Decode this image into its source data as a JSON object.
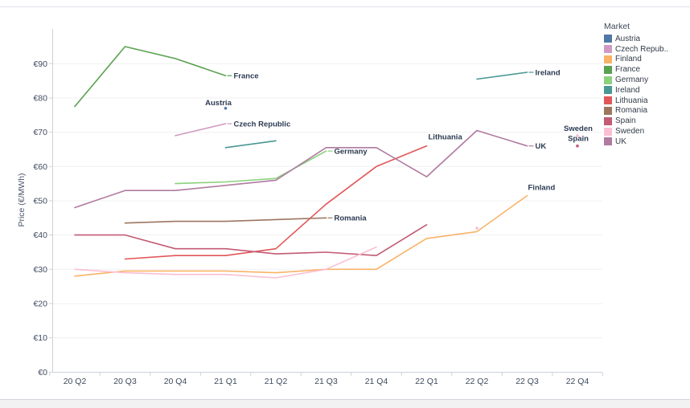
{
  "chart_data": {
    "type": "line",
    "title": "",
    "xlabel": "",
    "ylabel": "Price (€/MWh)",
    "ylim": [
      0,
      97
    ],
    "grid": "horizontal-faint",
    "legend_title": "Market",
    "legend_position": "right",
    "y_tick_values": [
      0,
      10,
      20,
      30,
      40,
      50,
      60,
      70,
      80,
      90
    ],
    "y_ticks": [
      "€0",
      "€10",
      "€20",
      "€30",
      "€40",
      "€50",
      "€60",
      "€70",
      "€80",
      "€90"
    ],
    "categories": [
      "20 Q2",
      "20 Q3",
      "20 Q4",
      "21 Q1",
      "21 Q2",
      "21 Q3",
      "21 Q4",
      "22 Q1",
      "22 Q2",
      "22 Q3",
      "22 Q4"
    ],
    "series": [
      {
        "name": "Austria",
        "legend_label": "Austria",
        "color": "#4E79A7",
        "values": [
          null,
          null,
          null,
          77,
          null,
          null,
          null,
          null,
          null,
          null,
          null
        ],
        "label_placement": "above",
        "label_anchor": "middle",
        "label_dx": -9,
        "label_dy": -4
      },
      {
        "name": "Czech Republic",
        "legend_label": "Czech Repub..",
        "color": "#CF9AC2",
        "values": [
          null,
          null,
          69,
          72.5,
          null,
          null,
          null,
          null,
          null,
          null,
          null
        ],
        "label_placement": "right"
      },
      {
        "name": "Finland",
        "legend_label": "Finland",
        "color": "#F9B366",
        "values": [
          28,
          29.5,
          29.5,
          29.5,
          29,
          30,
          30,
          39,
          41,
          51.5,
          null
        ],
        "label_placement": "above",
        "label_anchor": "start",
        "label_dx": 1,
        "label_dy": -7
      },
      {
        "name": "France",
        "legend_label": "France",
        "color": "#59A14F",
        "values": [
          77.5,
          95,
          91.5,
          86.5,
          null,
          null,
          null,
          null,
          null,
          null,
          null
        ],
        "label_placement": "right"
      },
      {
        "name": "Germany",
        "legend_label": "Germany",
        "color": "#8CD17D",
        "values": [
          null,
          null,
          55,
          55.5,
          56.5,
          64.5,
          null,
          null,
          null,
          null,
          null
        ],
        "label_placement": "right"
      },
      {
        "name": "Ireland",
        "legend_label": "Ireland",
        "color": "#499894",
        "values": [
          null,
          null,
          null,
          65.5,
          67.5,
          null,
          null,
          null,
          85.5,
          87.5,
          null
        ],
        "label_placement": "right"
      },
      {
        "name": "Lithuania",
        "legend_label": "Lithuania",
        "color": "#E15759",
        "values": [
          null,
          33,
          34,
          34,
          36,
          49,
          60,
          66,
          null,
          null,
          null
        ],
        "label_placement": "above",
        "label_anchor": "start",
        "label_dx": 2,
        "label_dy": -8
      },
      {
        "name": "Romania",
        "legend_label": "Romania",
        "color": "#9D7660",
        "values": [
          null,
          43.5,
          44,
          44,
          44.5,
          45,
          null,
          null,
          null,
          null,
          null
        ],
        "label_placement": "right"
      },
      {
        "name": "Spain",
        "legend_label": "Spain",
        "color": "#C25B74",
        "values": [
          40,
          40,
          36,
          36,
          34.5,
          35,
          34,
          43,
          null,
          null,
          66
        ],
        "label_placement": "above",
        "label_anchor": "middle",
        "label_dx": 1,
        "label_dy": -6
      },
      {
        "name": "Sweden",
        "legend_label": "Sweden",
        "color": "#FABFD2",
        "values": [
          30,
          29,
          28.5,
          28.5,
          27.5,
          30,
          36.5,
          null,
          42,
          null,
          69
        ],
        "label_placement": "above",
        "label_anchor": "middle",
        "label_dx": 1,
        "label_dy": -6
      },
      {
        "name": "UK",
        "legend_label": "UK",
        "color": "#B07AA1",
        "values": [
          48,
          53,
          53,
          54.5,
          56,
          65.5,
          65.5,
          57,
          70.5,
          66,
          null
        ],
        "label_placement": "right"
      }
    ]
  }
}
